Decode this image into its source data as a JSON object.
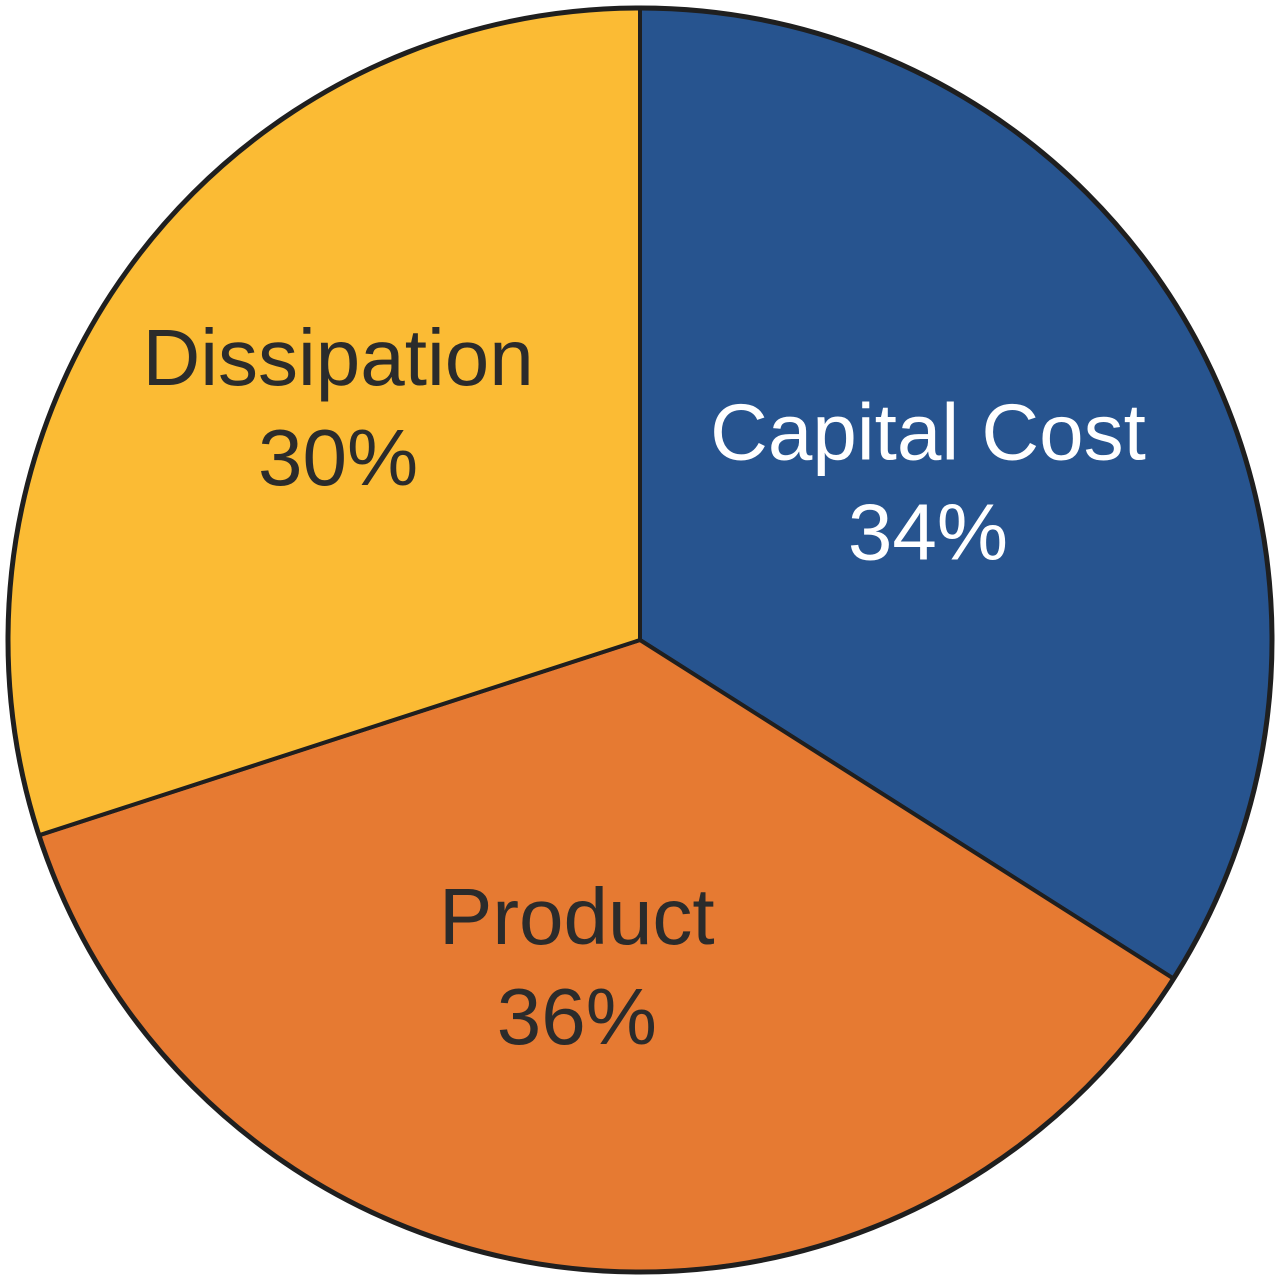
{
  "chart_data": {
    "type": "pie",
    "slices": [
      {
        "label": "Capital Cost",
        "value": 34,
        "value_label": "34%",
        "color": "#27548f",
        "text_color": "#ffffff"
      },
      {
        "label": "Product",
        "value": 36,
        "value_label": "36%",
        "color": "#e67a32",
        "text_color": "#2b2b2b"
      },
      {
        "label": "Dissipation",
        "value": 30,
        "value_label": "30%",
        "color": "#fbbb34",
        "text_color": "#2b2b2b"
      }
    ],
    "start_angle": "12 o'clock",
    "direction": "clockwise",
    "legend": "none"
  }
}
